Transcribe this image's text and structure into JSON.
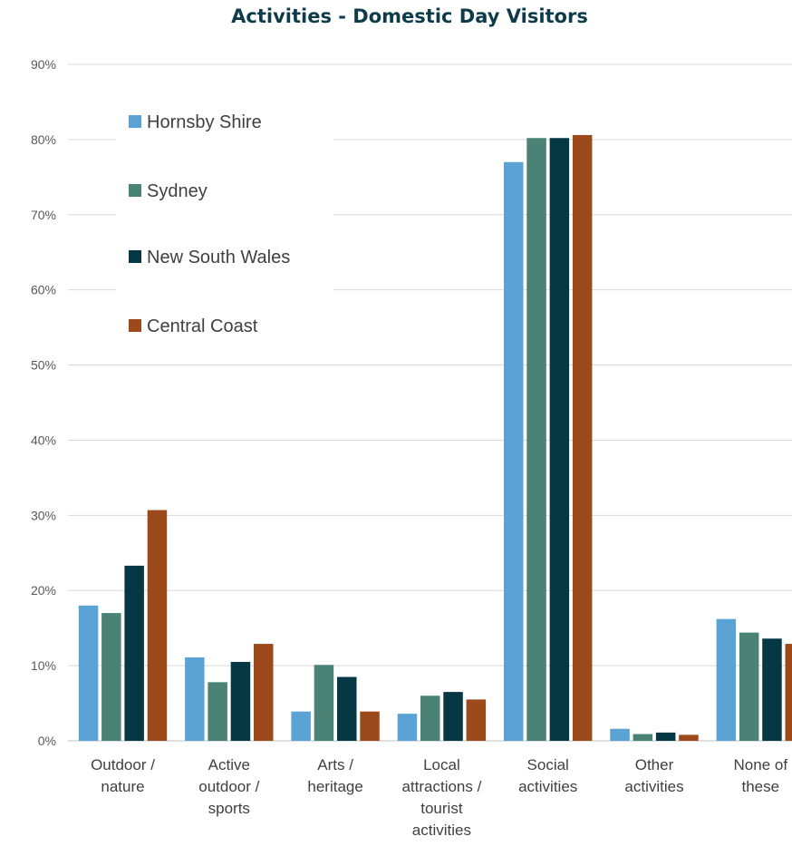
{
  "chart_data": {
    "type": "bar",
    "title": "Activities - Domestic Day Visitors",
    "xlabel": "",
    "ylabel": "",
    "ylim": [
      0,
      90
    ],
    "yticks": [
      "0%",
      "10%",
      "20%",
      "30%",
      "40%",
      "50%",
      "60%",
      "70%",
      "80%",
      "90%"
    ],
    "grid": true,
    "legend_position": "top-left",
    "categories": [
      [
        "Outdoor /",
        "nature"
      ],
      [
        "Active",
        "outdoor /",
        "sports"
      ],
      [
        "Arts /",
        "heritage"
      ],
      [
        "Local",
        "attractions /",
        "tourist",
        "activities"
      ],
      [
        "Social",
        "activities"
      ],
      [
        "Other",
        "activities"
      ],
      [
        "None of",
        "these"
      ]
    ],
    "series": [
      {
        "name": "Hornsby Shire",
        "color": "#5ba3d4",
        "values": [
          18.0,
          11.1,
          3.9,
          3.6,
          77.0,
          1.6,
          16.2
        ]
      },
      {
        "name": "Sydney",
        "color": "#4a8275",
        "values": [
          17.0,
          7.8,
          10.1,
          6.0,
          80.2,
          0.9,
          14.4
        ]
      },
      {
        "name": "New South Wales",
        "color": "#063744",
        "values": [
          23.3,
          10.5,
          8.5,
          6.5,
          80.2,
          1.1,
          13.6
        ]
      },
      {
        "name": "Central Coast",
        "color": "#9c4a1c",
        "values": [
          30.7,
          12.9,
          3.9,
          5.5,
          80.6,
          0.8,
          12.9
        ]
      }
    ]
  }
}
